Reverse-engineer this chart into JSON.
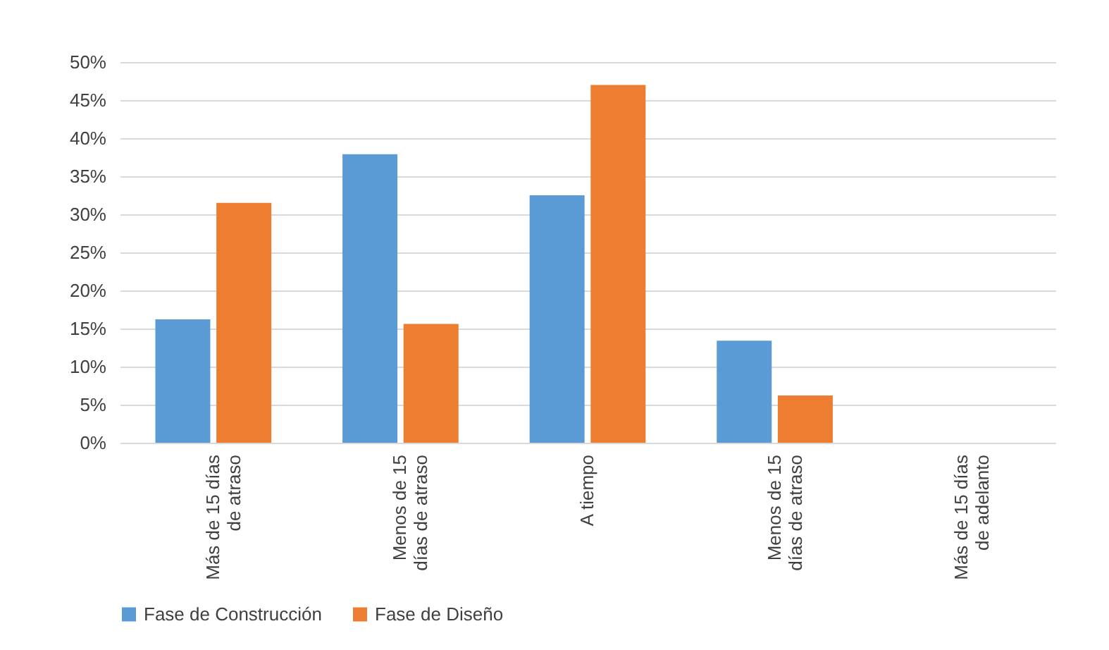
{
  "chart_data": {
    "type": "bar",
    "categories": [
      "Más de 15 días de atraso",
      "Menos de 15 días de atraso",
      "A tiempo",
      "Menos de 15 días de atraso",
      "Más de 15 días de adelanto"
    ],
    "series": [
      {
        "name": "Fase de Construcción",
        "color": "#5b9bd5",
        "values": [
          16.2,
          37.9,
          32.5,
          13.4,
          0
        ]
      },
      {
        "name": "Fase de Diseño",
        "color": "#ed7d31",
        "values": [
          31.5,
          15.6,
          47.0,
          6.2,
          0
        ]
      }
    ],
    "ylim": [
      0,
      50
    ],
    "yticks": [
      {
        "value": 0,
        "label": "0%"
      },
      {
        "value": 5,
        "label": "5%"
      },
      {
        "value": 10,
        "label": "10%"
      },
      {
        "value": 15,
        "label": "15%"
      },
      {
        "value": 20,
        "label": "20%"
      },
      {
        "value": 25,
        "label": "25%"
      },
      {
        "value": 30,
        "label": "30%"
      },
      {
        "value": 35,
        "label": "35%"
      },
      {
        "value": 40,
        "label": "40%"
      },
      {
        "value": 45,
        "label": "45%"
      },
      {
        "value": 50,
        "label": "50%"
      }
    ],
    "grid": "y",
    "legend": "bottom"
  }
}
